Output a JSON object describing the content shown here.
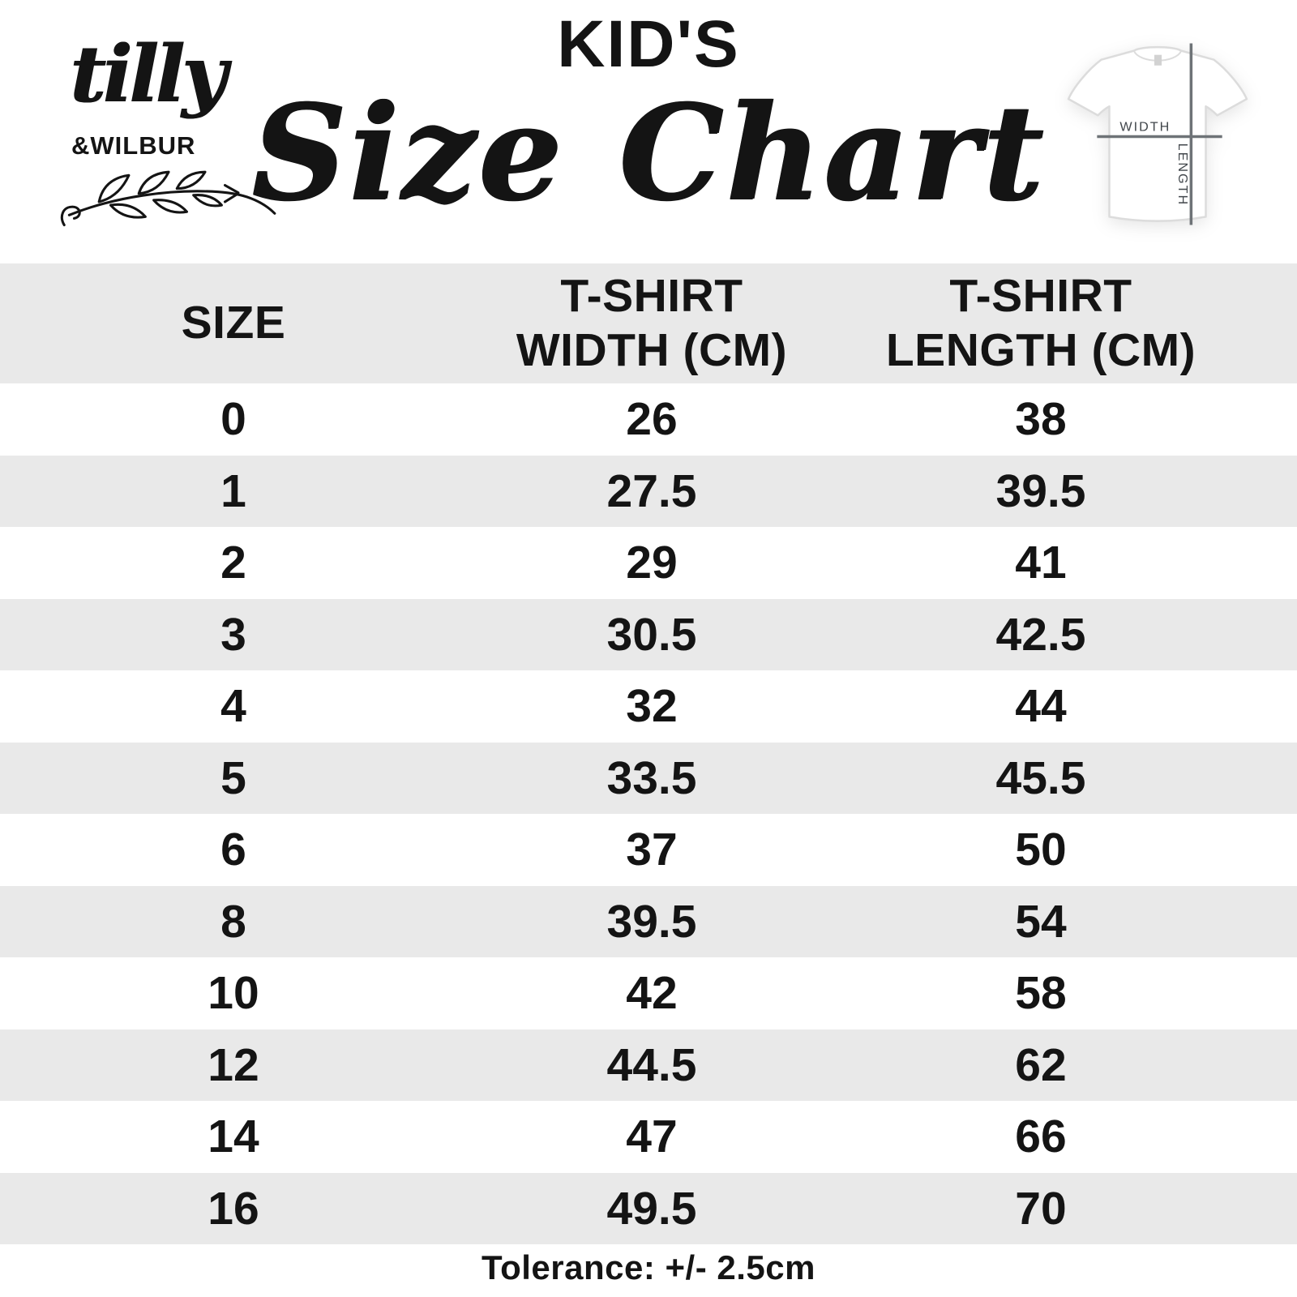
{
  "brand": {
    "script_name": "tilly",
    "caps_name": "&WILBUR"
  },
  "header": {
    "kicker": "KID'S",
    "title": "Size Chart"
  },
  "tshirt_diagram": {
    "width_label": "WIDTH",
    "length_label": "LENGTH"
  },
  "chart_data": {
    "type": "table",
    "title": "KID'S Size Chart",
    "columns": [
      "SIZE",
      "T-SHIRT WIDTH (CM)",
      "T-SHIRT LENGTH (CM)"
    ],
    "rows": [
      [
        "0",
        "26",
        "38"
      ],
      [
        "1",
        "27.5",
        "39.5"
      ],
      [
        "2",
        "29",
        "41"
      ],
      [
        "3",
        "30.5",
        "42.5"
      ],
      [
        "4",
        "32",
        "44"
      ],
      [
        "5",
        "33.5",
        "45.5"
      ],
      [
        "6",
        "37",
        "50"
      ],
      [
        "8",
        "39.5",
        "54"
      ],
      [
        "10",
        "42",
        "58"
      ],
      [
        "12",
        "44.5",
        "62"
      ],
      [
        "14",
        "47",
        "66"
      ],
      [
        "16",
        "49.5",
        "70"
      ]
    ],
    "footnote": "Tolerance: +/- 2.5cm"
  },
  "colors": {
    "page_bg": "#ffffff",
    "band_gray": "#e9e9e9",
    "ink": "#141414",
    "diagram_line": "#6e7377",
    "diagram_label": "#41464b",
    "tee_outline": "#dcdcdc"
  }
}
